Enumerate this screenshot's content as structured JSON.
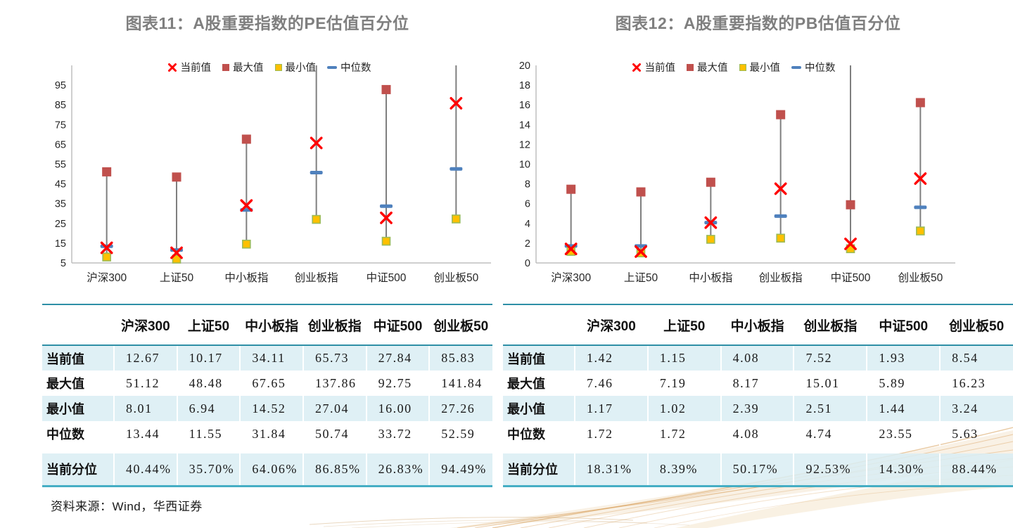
{
  "page": {
    "source_note": "资料来源：Wind，华西证券"
  },
  "colors": {
    "current": "#FF0000",
    "max": "#C0504D",
    "min_fill": "#FFC000",
    "min_border": "#9BBB59",
    "median": "#4F81BD",
    "hilo_line": "#7F7F7F",
    "axis_line": "#BFBFBF",
    "title_gray": "#7F7F7F",
    "table_alt_row": "#DAEEF3",
    "table_border_teal": "#2E8FA6"
  },
  "charts": [
    {
      "title": "图表11：A股重要指数的PE估值百分位",
      "legend": [
        "当前值",
        "最大值",
        "最小值",
        "中位数"
      ],
      "chart_data": {
        "type": "stock-hilo",
        "categories": [
          "沪深300",
          "上证50",
          "中小板指",
          "创业板指",
          "中证500",
          "创业板50"
        ],
        "series": [
          {
            "name": "当前值",
            "marker": "x",
            "values": [
              12.67,
              10.17,
              34.11,
              65.73,
              27.84,
              85.83
            ]
          },
          {
            "name": "最大值",
            "marker": "square-max",
            "values": [
              51.12,
              48.48,
              67.65,
              137.86,
              92.75,
              141.84
            ]
          },
          {
            "name": "最小值",
            "marker": "square-min",
            "values": [
              8.01,
              6.94,
              14.52,
              27.04,
              16.0,
              27.26
            ]
          },
          {
            "name": "中位数",
            "marker": "dash",
            "values": [
              13.44,
              11.55,
              31.84,
              50.74,
              33.72,
              52.59
            ]
          }
        ],
        "ylim": [
          5,
          105
        ],
        "yticks": [
          5,
          15,
          25,
          35,
          45,
          55,
          65,
          75,
          85,
          95
        ],
        "grid": false,
        "legend_position": "top"
      },
      "table": {
        "columns": [
          "",
          "沪深300",
          "上证50",
          "中小板指",
          "创业板指",
          "中证500",
          "创业板50"
        ],
        "rows": [
          {
            "label": "当前值",
            "values": [
              "12.67",
              "10.17",
              "34.11",
              "65.73",
              "27.84",
              "85.83"
            ]
          },
          {
            "label": "最大值",
            "values": [
              "51.12",
              "48.48",
              "67.65",
              "137.86",
              "92.75",
              "141.84"
            ]
          },
          {
            "label": "最小值",
            "values": [
              "8.01",
              "6.94",
              "14.52",
              "27.04",
              "16.00",
              "27.26"
            ]
          },
          {
            "label": "中位数",
            "values": [
              "13.44",
              "11.55",
              "31.84",
              "50.74",
              "33.72",
              "52.59"
            ]
          },
          {
            "label": "当前分位",
            "values": [
              "40.44%",
              "35.70%",
              "64.06%",
              "86.85%",
              "26.83%",
              "94.49%"
            ]
          }
        ]
      }
    },
    {
      "title": "图表12：A股重要指数的PB估值百分位",
      "legend": [
        "当前值",
        "最大值",
        "最小值",
        "中位数"
      ],
      "chart_data": {
        "type": "stock-hilo",
        "categories": [
          "沪深300",
          "上证50",
          "中小板指",
          "创业板指",
          "中证500",
          "创业板50"
        ],
        "series": [
          {
            "name": "当前值",
            "marker": "x",
            "values": [
              1.42,
              1.15,
              4.08,
              7.52,
              1.93,
              8.54
            ]
          },
          {
            "name": "最大值",
            "marker": "square-max",
            "values": [
              7.46,
              7.19,
              8.17,
              15.01,
              5.89,
              16.23
            ]
          },
          {
            "name": "最小值",
            "marker": "square-min",
            "values": [
              1.17,
              1.02,
              2.39,
              2.51,
              1.44,
              3.24
            ]
          },
          {
            "name": "中位数",
            "marker": "dash",
            "values": [
              1.72,
              1.72,
              4.08,
              4.74,
              23.55,
              5.63
            ]
          }
        ],
        "ylim": [
          0,
          20
        ],
        "yticks": [
          0,
          2,
          4,
          6,
          8,
          10,
          12,
          14,
          16,
          18,
          20
        ],
        "grid": false,
        "legend_position": "top"
      },
      "table": {
        "columns": [
          "",
          "沪深300",
          "上证50",
          "中小板指",
          "创业板指",
          "中证500",
          "创业板50"
        ],
        "rows": [
          {
            "label": "当前值",
            "values": [
              "1.42",
              "1.15",
              "4.08",
              "7.52",
              "1.93",
              "8.54"
            ]
          },
          {
            "label": "最大值",
            "values": [
              "7.46",
              "7.19",
              "8.17",
              "15.01",
              "5.89",
              "16.23"
            ]
          },
          {
            "label": "最小值",
            "values": [
              "1.17",
              "1.02",
              "2.39",
              "2.51",
              "1.44",
              "3.24"
            ]
          },
          {
            "label": "中位数",
            "values": [
              "1.72",
              "1.72",
              "4.08",
              "4.74",
              "23.55",
              "5.63"
            ]
          },
          {
            "label": "当前分位",
            "values": [
              "18.31%",
              "8.39%",
              "50.17%",
              "92.53%",
              "14.30%",
              "88.44%"
            ]
          }
        ]
      }
    }
  ]
}
